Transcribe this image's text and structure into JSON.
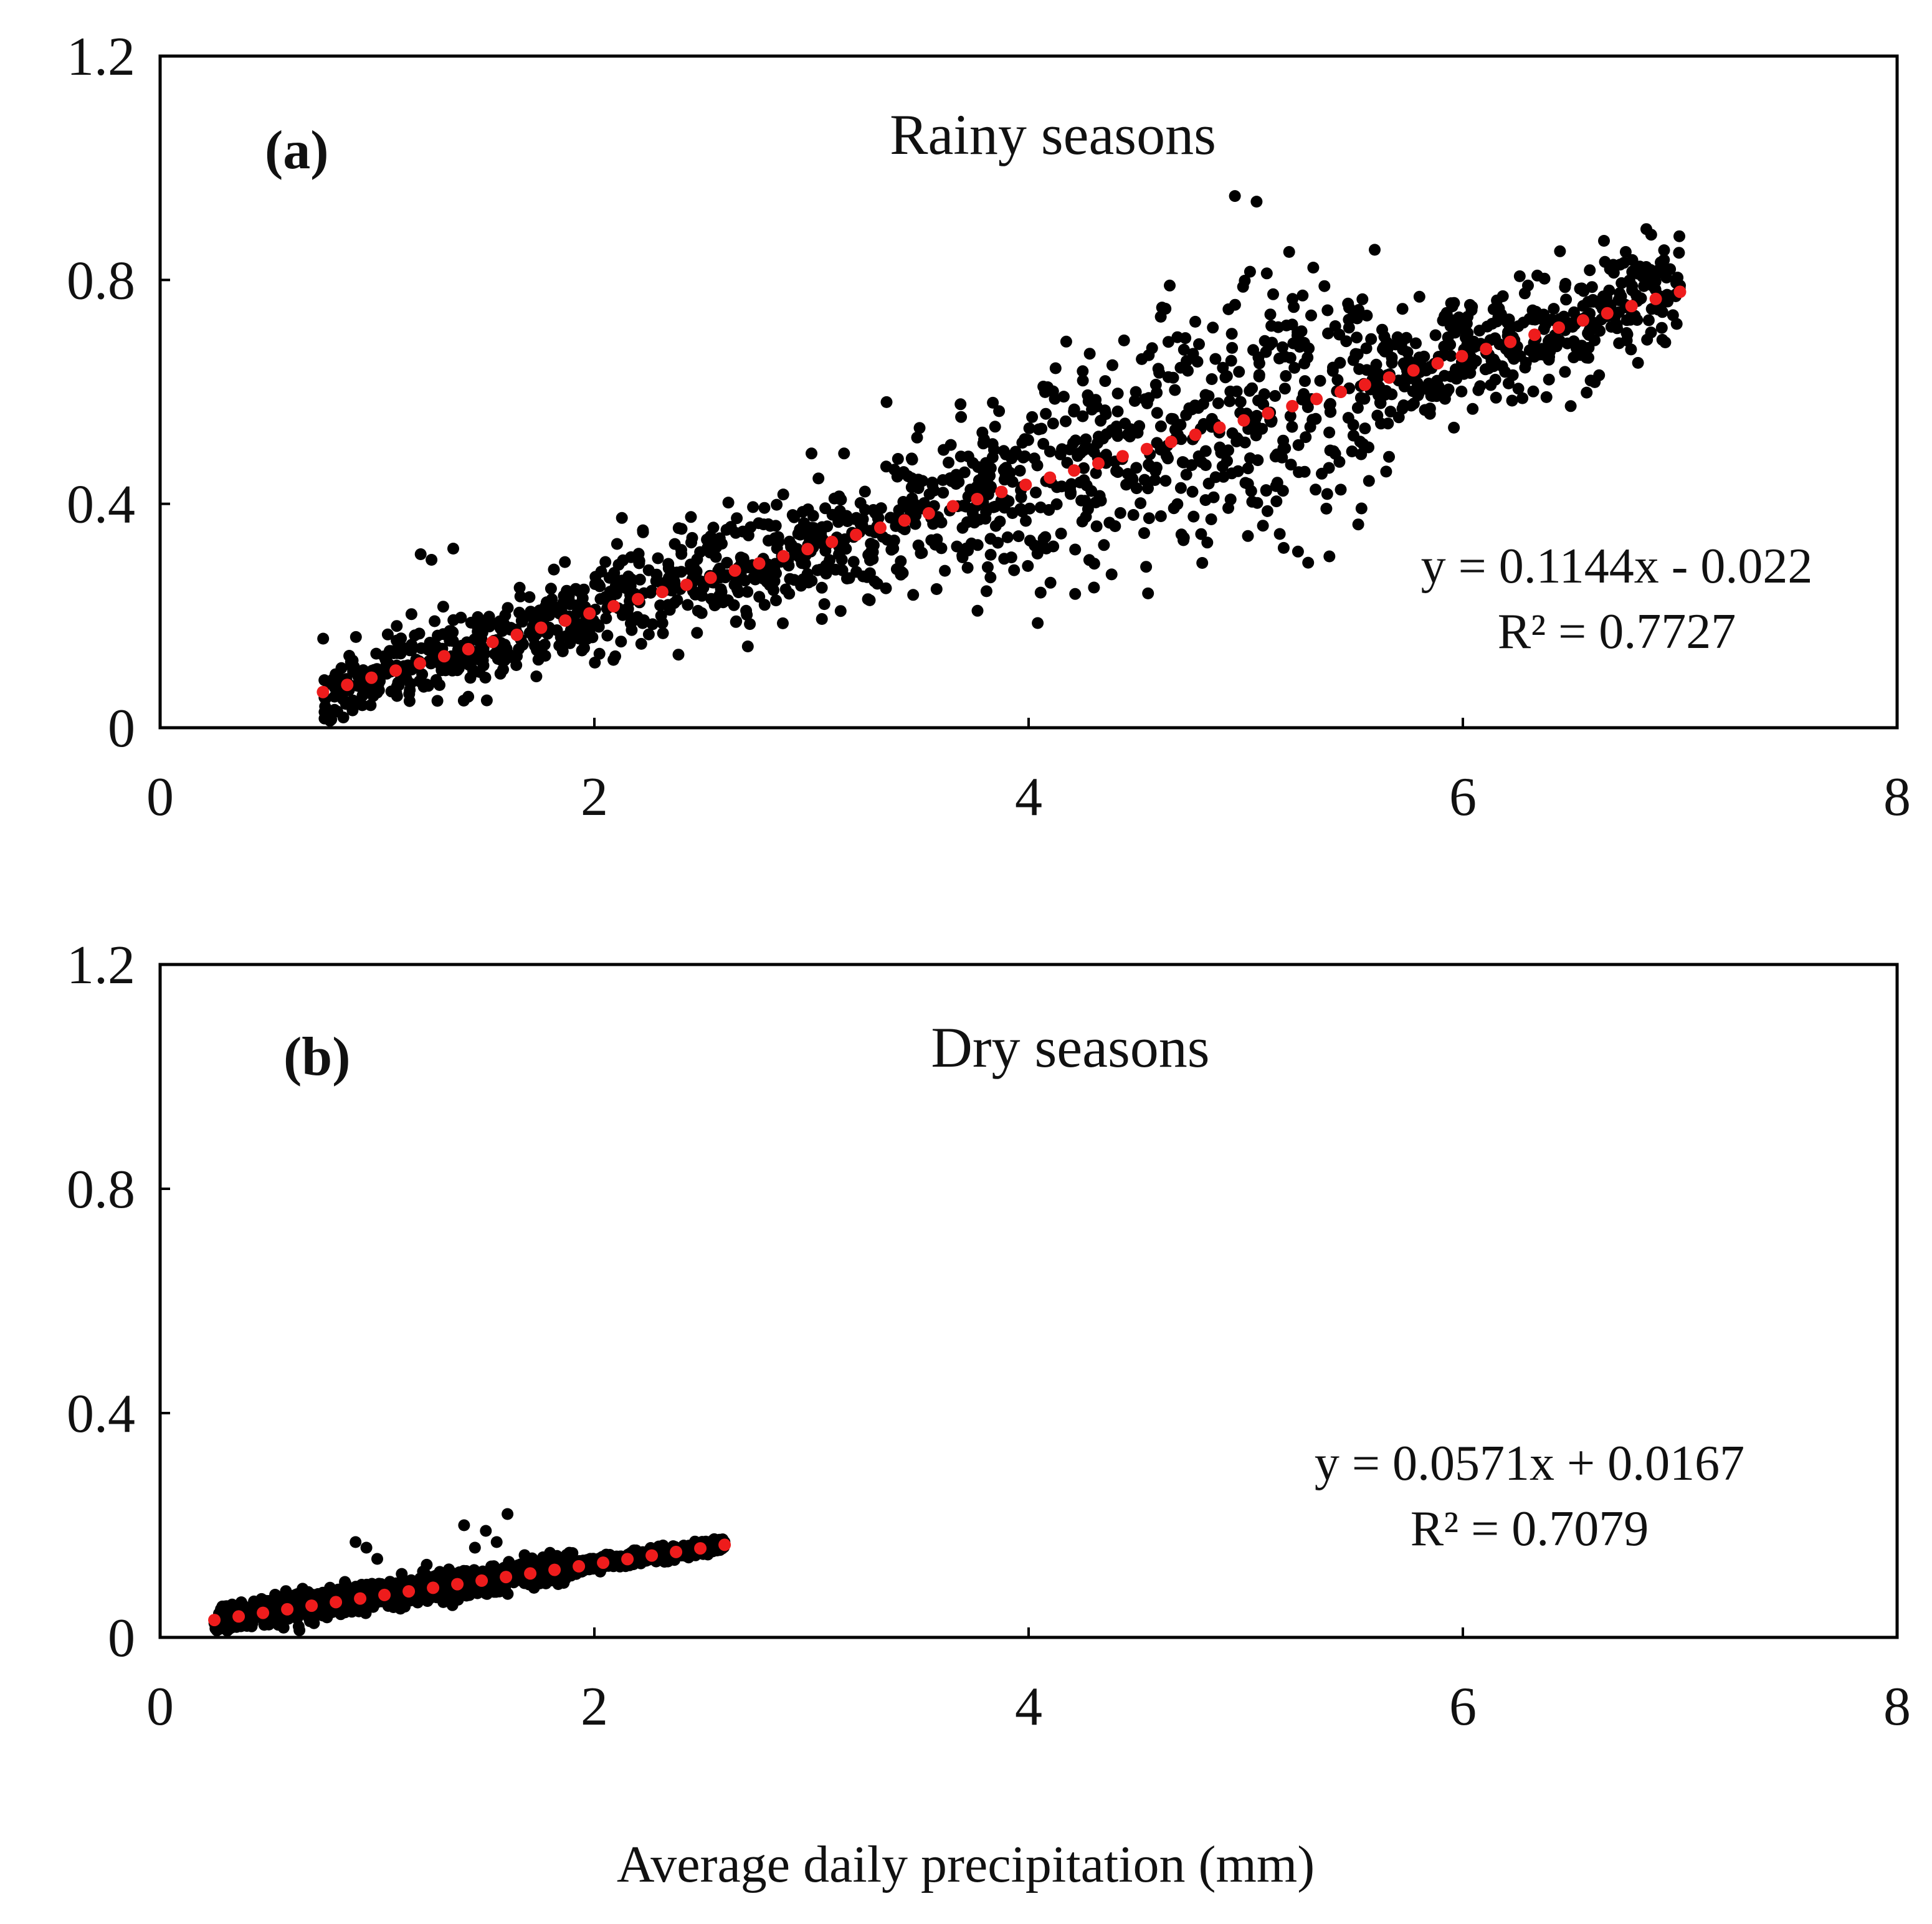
{
  "figure": {
    "xlabel": "Average daily precipitation (mm)"
  },
  "colors": {
    "points": "#000000",
    "trend": "#ee1c1c",
    "frame": "#000000"
  },
  "chart_data": [
    {
      "type": "scatter",
      "panel": "(a)",
      "title": "Rainy seasons",
      "xlim": [
        0,
        8
      ],
      "ylim": [
        0,
        1.2
      ],
      "x_ticks": [
        "0",
        "2",
        "4",
        "6",
        "8"
      ],
      "y_ticks": [
        "0",
        "0.4",
        "0.8",
        "1.2"
      ],
      "x_range": [
        0.75,
        7.0
      ],
      "trendline": {
        "slope": 0.1144,
        "intercept": -0.022,
        "x_from": 0.75,
        "x_to": 7.0,
        "style": "dotted"
      },
      "equation": "y = 0.1144x - 0.022",
      "r_squared": "R² = 0.7727",
      "n_points": 1700,
      "point_clusters": [
        {
          "x": [
            0.75,
            2.0
          ],
          "spread": 0.035
        },
        {
          "x": [
            2.0,
            3.2
          ],
          "spread": 0.05
        },
        {
          "x": [
            3.2,
            4.0
          ],
          "spread": 0.07
        },
        {
          "x": [
            4.0,
            5.6
          ],
          "spread": 0.11
        },
        {
          "x": [
            5.6,
            7.0
          ],
          "spread": 0.05
        }
      ],
      "highlights": [
        {
          "x": 4.95,
          "y": 0.95
        },
        {
          "x": 5.05,
          "y": 0.94
        },
        {
          "x": 6.65,
          "y": 0.87
        },
        {
          "x": 6.75,
          "y": 0.85
        },
        {
          "x": 5.2,
          "y": 0.85
        },
        {
          "x": 1.2,
          "y": 0.31
        },
        {
          "x": 1.25,
          "y": 0.3
        },
        {
          "x": 1.35,
          "y": 0.32
        },
        {
          "x": 4.55,
          "y": 0.24
        },
        {
          "x": 3.0,
          "y": 0.49
        },
        {
          "x": 3.15,
          "y": 0.49
        },
        {
          "x": 4.65,
          "y": 0.79
        },
        {
          "x": 6.3,
          "y": 0.79
        },
        {
          "x": 7.0,
          "y": 0.79
        },
        {
          "x": 5.8,
          "y": 0.77
        }
      ]
    },
    {
      "type": "scatter",
      "panel": "(b)",
      "title": "Dry seasons",
      "xlim": [
        0,
        8
      ],
      "ylim": [
        0,
        1.2
      ],
      "x_ticks": [
        "0",
        "2",
        "4",
        "6",
        "8"
      ],
      "y_ticks": [
        "0",
        "0.4",
        "0.8",
        "1.2"
      ],
      "x_range": [
        0.25,
        2.6
      ],
      "trendline": {
        "slope": 0.0571,
        "intercept": 0.0167,
        "x_from": 0.25,
        "x_to": 2.6,
        "style": "dotted"
      },
      "equation": "y = 0.0571x + 0.0167",
      "r_squared": "R² = 0.7079",
      "n_points": 1600,
      "point_clusters": [
        {
          "x": [
            0.25,
            1.9
          ],
          "spread": 0.012
        },
        {
          "x": [
            1.9,
            2.6
          ],
          "spread": 0.006
        }
      ],
      "highlights": [
        {
          "x": 0.9,
          "y": 0.17
        },
        {
          "x": 0.95,
          "y": 0.16
        },
        {
          "x": 1.0,
          "y": 0.14
        },
        {
          "x": 1.4,
          "y": 0.2
        },
        {
          "x": 1.5,
          "y": 0.19
        },
        {
          "x": 1.6,
          "y": 0.22
        },
        {
          "x": 1.55,
          "y": 0.17
        },
        {
          "x": 1.45,
          "y": 0.16
        }
      ]
    }
  ]
}
